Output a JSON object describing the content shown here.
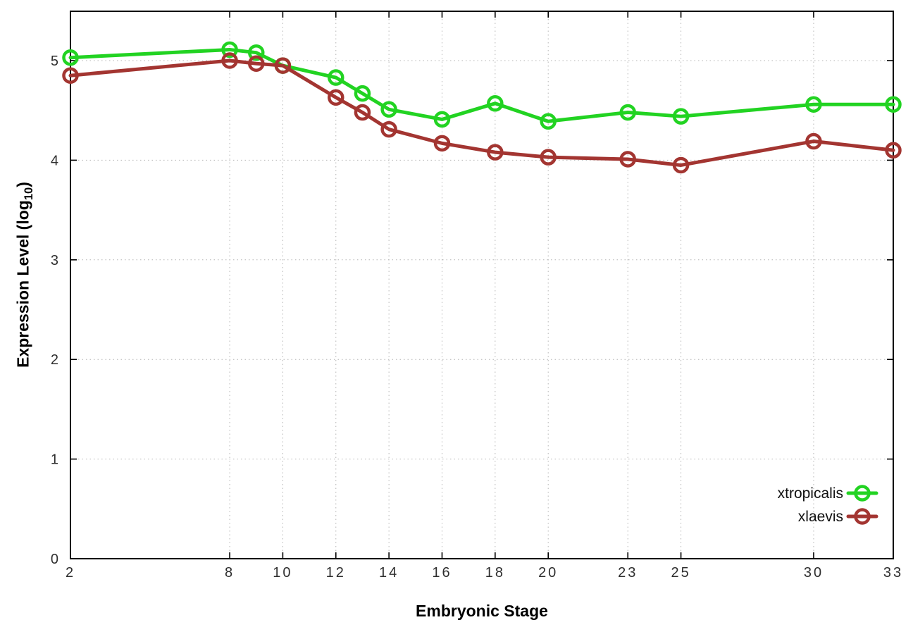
{
  "figure": {
    "background": "#ffffff",
    "xlabel": "Embryonic Stage",
    "ylabel_prefix": "Expression Level (log",
    "ylabel_sub": "10",
    "ylabel_suffix": ")"
  },
  "chart_data": {
    "type": "line",
    "title": "",
    "xlabel": "Embryonic Stage",
    "ylabel": "Expression Level (log10)",
    "x": [
      2,
      8,
      9,
      10,
      12,
      13,
      14,
      16,
      18,
      20,
      23,
      25,
      30,
      33
    ],
    "series": [
      {
        "name": "xtropicalis",
        "color": "#22d322",
        "marker": "open-circle",
        "values": [
          5.03,
          5.11,
          5.08,
          4.95,
          4.83,
          4.67,
          4.51,
          4.41,
          4.57,
          4.39,
          4.48,
          4.44,
          4.56,
          4.56
        ]
      },
      {
        "name": "xlaevis",
        "color": "#a33531",
        "marker": "open-circle",
        "values": [
          4.85,
          5.0,
          4.97,
          4.95,
          4.63,
          4.48,
          4.31,
          4.17,
          4.08,
          4.03,
          4.01,
          3.95,
          4.19,
          4.1
        ]
      }
    ],
    "x_ticks": [
      2,
      8,
      10,
      12,
      14,
      16,
      18,
      20,
      23,
      25,
      30,
      33
    ],
    "y_ticks": [
      0,
      1,
      2,
      3,
      4,
      5
    ],
    "xlim": [
      2,
      33
    ],
    "ylim": [
      0,
      5.5
    ],
    "grid": true,
    "legend_position": "bottom-right-inside",
    "legend": [
      "xtropicalis",
      "xlaevis"
    ],
    "axis_color": "#000000",
    "grid_color": "#b4b4b4",
    "tick_label_color": "#2e2e2e"
  }
}
